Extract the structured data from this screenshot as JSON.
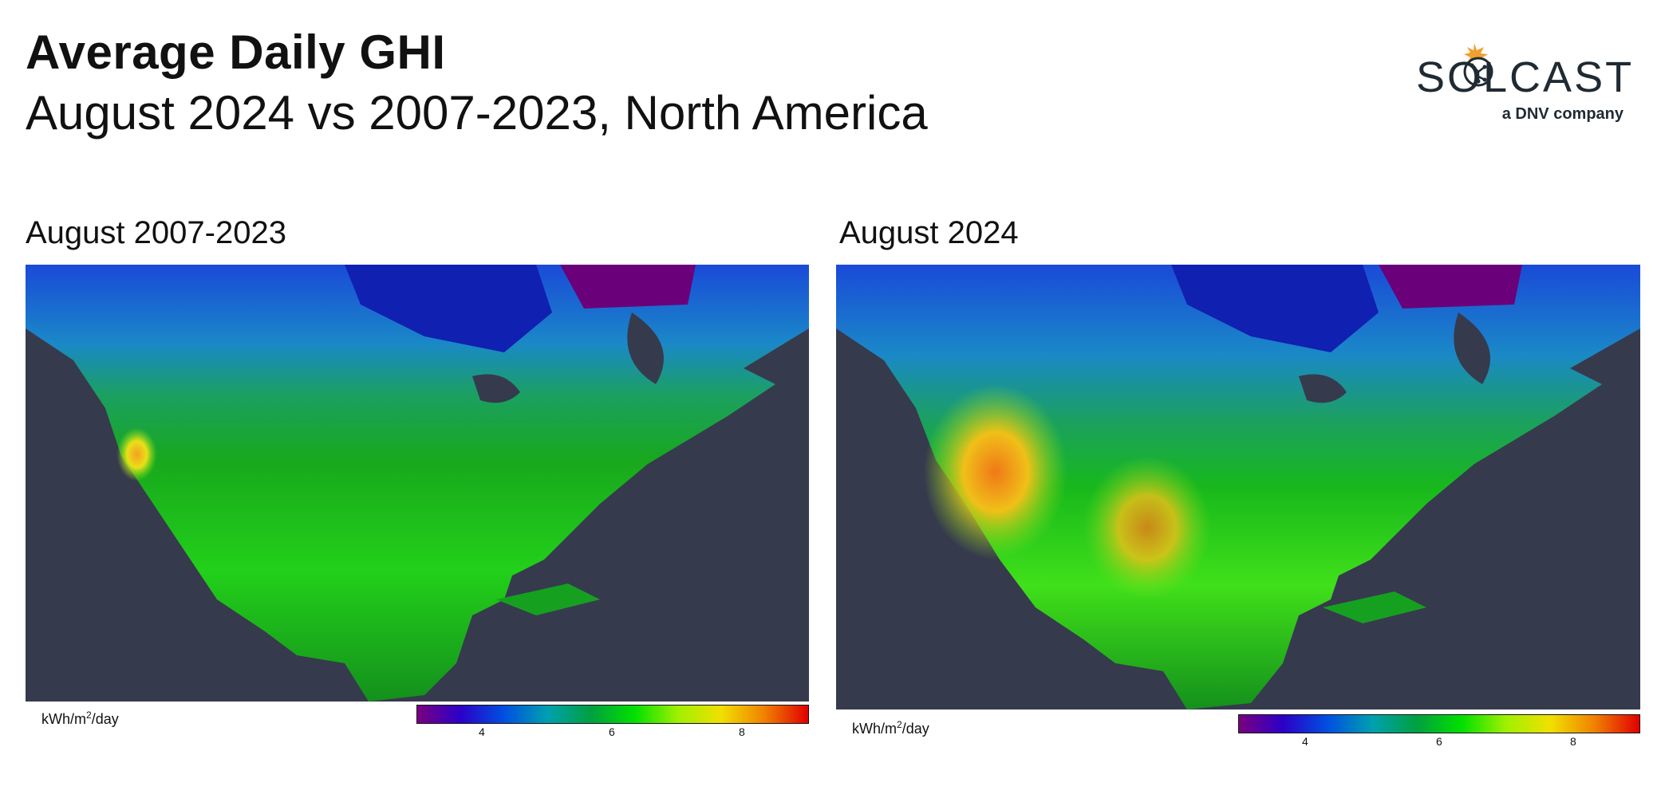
{
  "header": {
    "title": "Average Daily GHI",
    "subtitle": "August 2024 vs 2007-2023, North America"
  },
  "logo": {
    "wordmark": "SOLCAST",
    "tagline": "a DNV company",
    "icon": "sun-circuit-icon"
  },
  "panels": [
    {
      "title": "August 2007-2023",
      "unit_prefix": "kWh/m",
      "unit_sup": "2",
      "unit_suffix": "/day",
      "colorbar_ticks": [
        "4",
        "6",
        "8"
      ]
    },
    {
      "title": "August 2024",
      "unit_prefix": "kWh/m",
      "unit_sup": "2",
      "unit_suffix": "/day",
      "colorbar_ticks": [
        "4",
        "6",
        "8"
      ]
    }
  ],
  "colors": {
    "ocean": "#363a4d",
    "colormap": [
      "#7a0080",
      "#2b00c8",
      "#0050e0",
      "#00a0b0",
      "#00a040",
      "#00e000",
      "#a0f000",
      "#f0e000",
      "#f08000",
      "#e00000"
    ]
  }
}
